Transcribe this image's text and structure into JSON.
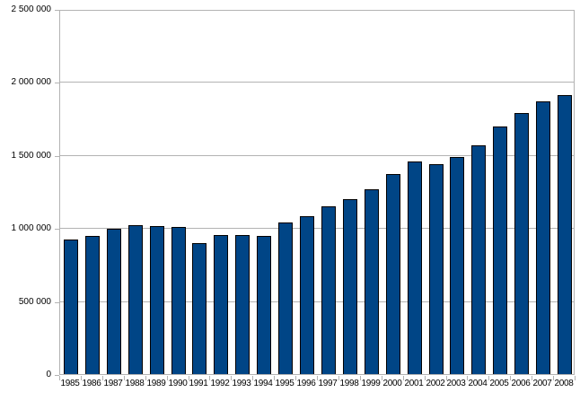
{
  "chart_data": {
    "type": "bar",
    "title": "",
    "xlabel": "",
    "ylabel": "",
    "categories": [
      "1985",
      "1986",
      "1987",
      "1988",
      "1989",
      "1990",
      "1991",
      "1992",
      "1993",
      "1994",
      "1995",
      "1996",
      "1997",
      "1998",
      "1999",
      "2000",
      "2001",
      "2002",
      "2003",
      "2004",
      "2005",
      "2006",
      "2007",
      "2008"
    ],
    "values": [
      920000,
      945000,
      995000,
      1020000,
      1015000,
      1010000,
      895000,
      955000,
      955000,
      945000,
      1040000,
      1080000,
      1150000,
      1195000,
      1265000,
      1370000,
      1455000,
      1440000,
      1485000,
      1565000,
      1695000,
      1785000,
      1865000,
      1910000
    ],
    "ylim": [
      0,
      2500000
    ],
    "ytick_interval": 500000,
    "ytick_labels": [
      "0",
      "500 000",
      "1 000 000",
      "1 500 000",
      "2 000 000",
      "2 500 000"
    ],
    "grid": true,
    "legend": "none",
    "colors": {
      "bar_fill": "#004586",
      "bar_border": "#000000",
      "gridline": "#b3b3b3",
      "axis": "#b3b3b3",
      "text": "#000000",
      "background": "#ffffff"
    }
  }
}
